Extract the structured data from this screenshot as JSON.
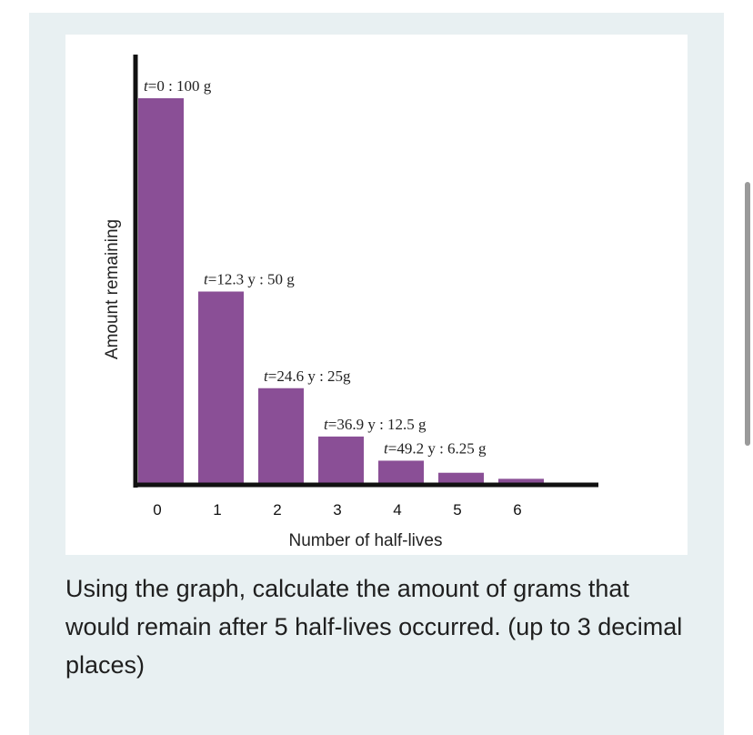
{
  "colors": {
    "bar": "#8a4f96",
    "axis": "#111111",
    "card": "#e8f0f2"
  },
  "chart_data": {
    "type": "bar",
    "xlabel": "Number of half-lives",
    "ylabel": "Amount remaining",
    "categories": [
      "0",
      "1",
      "2",
      "3",
      "4",
      "5",
      "6"
    ],
    "values": [
      100,
      50,
      25,
      12.5,
      6.25,
      3.125,
      1.5625
    ],
    "ylim": [
      0,
      100
    ],
    "grid": false,
    "bar_labels": [
      {
        "t": "t",
        "rest": "=0 : 100 g"
      },
      {
        "t": "t",
        "rest": "=12.3 y : 50 g"
      },
      {
        "t": "t",
        "rest": "=24.6 y : 25g"
      },
      {
        "t": "t",
        "rest": "=36.9 y : 12.5 g"
      },
      {
        "t": "t",
        "rest": "=49.2 y : 6.25 g"
      }
    ]
  },
  "question": "Using the graph, calculate the amount of grams that would remain after 5 half-lives occurred. (up to 3 decimal places)"
}
